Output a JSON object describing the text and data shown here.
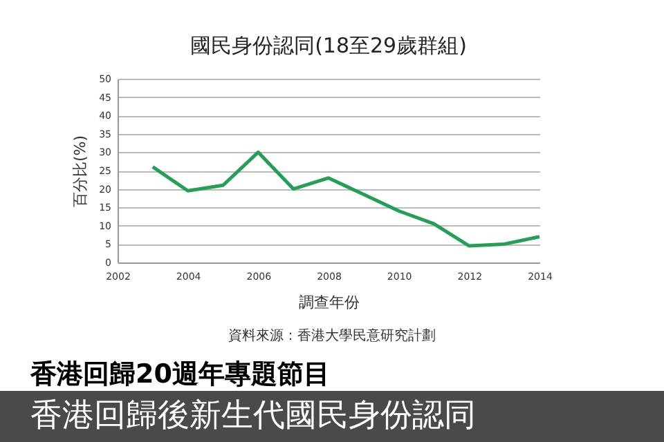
{
  "chart_data": {
    "type": "line",
    "title": "國民身份認同(18至29歲群組)",
    "xlabel": "調查年份",
    "ylabel": "百分比(%)",
    "annotations": [
      "資料來源：香港大學民意研究計劃",
      "香港回歸20週年專題節目",
      "香港回歸後新生代國民身份認同"
    ],
    "x": [
      2003,
      2004,
      2005,
      2006,
      2007,
      2008,
      2009,
      2010,
      2011,
      2012,
      2013,
      2014
    ],
    "series": [
      {
        "color": "#23a055",
        "values": [
          26,
          19.5,
          21,
          30,
          20,
          23,
          18.5,
          14,
          10.5,
          4.5,
          5,
          7
        ]
      }
    ],
    "xlim": [
      2002,
      2014
    ],
    "xticks": [
      2002,
      2004,
      2006,
      2008,
      2010,
      2012,
      2014
    ],
    "ylim": [
      0,
      50
    ],
    "yticks": [
      0,
      5,
      10,
      15,
      20,
      25,
      30,
      35,
      40,
      45,
      50
    ],
    "grid": "y",
    "marker": "none",
    "line_style": "solid",
    "legend": false
  }
}
